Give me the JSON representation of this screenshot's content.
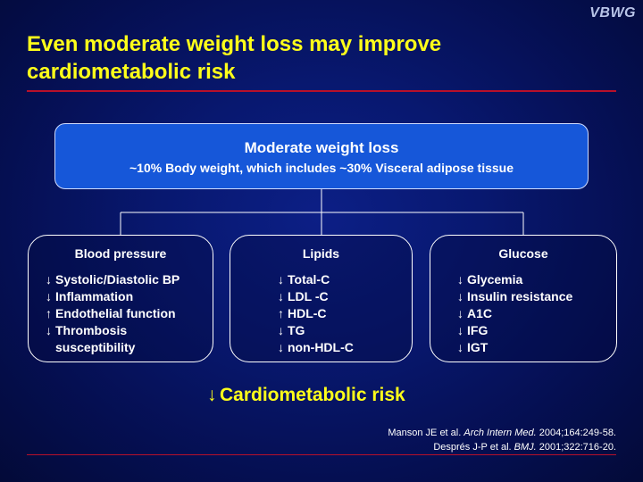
{
  "brand": "VBWG",
  "title": {
    "line1": "Even moderate weight loss may improve",
    "line2": "cardiometabolic risk"
  },
  "colors": {
    "background": "#081870",
    "title": "#ffff1a",
    "top_box": "#1657d9",
    "rule": "#b8102a"
  },
  "top_box": {
    "main": "Moderate weight loss",
    "sub": "~10% Body weight, which includes ~30% Visceral adipose tissue"
  },
  "categories": [
    {
      "heading": "Blood pressure",
      "items": [
        {
          "dir": "down",
          "text": "Systolic/Diastolic BP"
        },
        {
          "dir": "down",
          "text": "Inflammation"
        },
        {
          "dir": "up",
          "text": "Endothelial function"
        },
        {
          "dir": "down",
          "text": "Thrombosis"
        },
        {
          "dir": "none",
          "text": "susceptibility"
        }
      ]
    },
    {
      "heading": "Lipids",
      "items": [
        {
          "dir": "down",
          "text": "Total-C"
        },
        {
          "dir": "down",
          "text": "LDL -C"
        },
        {
          "dir": "up",
          "text": "HDL-C"
        },
        {
          "dir": "down",
          "text": "TG"
        },
        {
          "dir": "down",
          "text": "non-HDL-C"
        }
      ]
    },
    {
      "heading": "Glucose",
      "items": [
        {
          "dir": "down",
          "text": "Glycemia"
        },
        {
          "dir": "down",
          "text": "Insulin resistance"
        },
        {
          "dir": "down",
          "text": "A1C"
        },
        {
          "dir": "down",
          "text": "IFG"
        },
        {
          "dir": "down",
          "text": "IGT"
        }
      ]
    }
  ],
  "outcome": {
    "dir": "down",
    "text": "Cardiometabolic risk"
  },
  "references": [
    {
      "pre": "Manson JE et al. ",
      "journal": "Arch Intern Med.",
      "post": " 2004;164:249-58."
    },
    {
      "pre": "Després J-P et al. ",
      "journal": "BMJ.",
      "post": " 2001;322:716-20."
    }
  ]
}
